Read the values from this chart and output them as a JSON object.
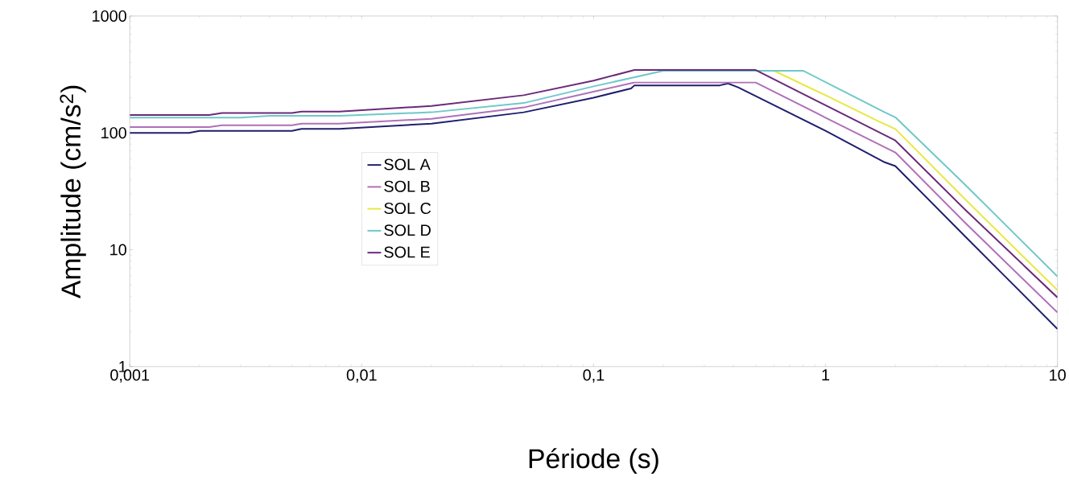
{
  "chart_data": {
    "type": "line",
    "xlabel": "Période (s)",
    "ylabel": "Amplitude (cm/s$^{2}$)",
    "log": "xy",
    "grid": false,
    "legend": "left",
    "marker": "none",
    "line_style": "solid",
    "xlim": [
      0.001,
      10
    ],
    "ylim": [
      1,
      1000
    ],
    "xticks": [
      {
        "value": 0.001,
        "label": "0,001"
      },
      {
        "value": 0.01,
        "label": "0,01"
      },
      {
        "value": 0.1,
        "label": "0,1"
      },
      {
        "value": 1,
        "label": "1"
      },
      {
        "value": 10,
        "label": "10"
      }
    ],
    "yticks": [
      1,
      10,
      100,
      1000
    ],
    "series": [
      {
        "name": "SOL A",
        "color": "#1f1f6e",
        "x": [
          0.001,
          0.0018,
          0.002,
          0.005,
          0.0055,
          0.008,
          0.02,
          0.05,
          0.1,
          0.145,
          0.15,
          0.35,
          0.38,
          0.42,
          1,
          1.8,
          2,
          4,
          6,
          10
        ],
        "values": [
          100,
          100,
          104,
          104,
          108,
          108,
          120,
          150,
          200,
          240,
          255,
          255,
          265,
          245,
          104,
          56,
          52,
          13,
          5.8,
          2.1
        ]
      },
      {
        "name": "SOL B",
        "color": "#b070b8",
        "x": [
          0.001,
          0.0022,
          0.0025,
          0.005,
          0.0055,
          0.008,
          0.02,
          0.05,
          0.1,
          0.15,
          0.5,
          1,
          2,
          4,
          10
        ],
        "values": [
          112,
          112,
          116,
          116,
          120,
          120,
          132,
          165,
          225,
          270,
          270,
          135,
          68,
          17,
          2.9
        ]
      },
      {
        "name": "SOL C",
        "color": "#e8e840",
        "x": [
          0.6,
          1,
          1.7,
          2,
          4,
          10
        ],
        "values": [
          340,
          210,
          125,
          108,
          27,
          4.5
        ]
      },
      {
        "name": "SOL D",
        "color": "#70c8c8",
        "x": [
          0.001,
          0.003,
          0.004,
          0.008,
          0.02,
          0.05,
          0.1,
          0.2,
          0.8,
          1,
          1.8,
          2,
          4,
          10
        ],
        "values": [
          135,
          135,
          140,
          140,
          150,
          180,
          250,
          340,
          340,
          272,
          150,
          136,
          36,
          5.9
        ]
      },
      {
        "name": "SOL E",
        "color": "#6a2a7a",
        "x": [
          0.001,
          0.0022,
          0.0025,
          0.005,
          0.0055,
          0.008,
          0.02,
          0.05,
          0.1,
          0.15,
          0.5,
          1,
          2,
          4,
          10
        ],
        "values": [
          142,
          142,
          148,
          148,
          152,
          152,
          170,
          210,
          280,
          345,
          345,
          172,
          86,
          22,
          3.9
        ]
      }
    ]
  }
}
